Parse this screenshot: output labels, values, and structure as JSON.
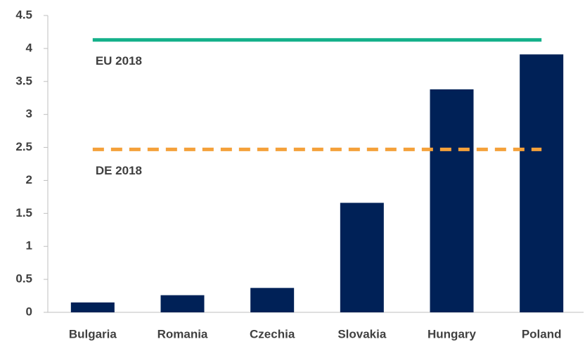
{
  "chart_data": {
    "type": "bar",
    "categories": [
      "Bulgaria",
      "Romania",
      "Czechia",
      "Slovakia",
      "Hungary",
      "Poland"
    ],
    "values": [
      0.15,
      0.26,
      0.37,
      1.66,
      3.38,
      3.91
    ],
    "color": "#002157",
    "ylim": [
      0,
      4.5
    ],
    "yticks": [
      0,
      0.5,
      1,
      1.5,
      2,
      2.5,
      3,
      3.5,
      4,
      4.5
    ],
    "grid": false,
    "reference_lines": [
      {
        "name": "EU 2018",
        "value": 4.13,
        "color": "#14b08a",
        "style": "solid"
      },
      {
        "name": "DE 2018",
        "value": 2.47,
        "color": "#f4a13a",
        "style": "dashed"
      }
    ]
  }
}
